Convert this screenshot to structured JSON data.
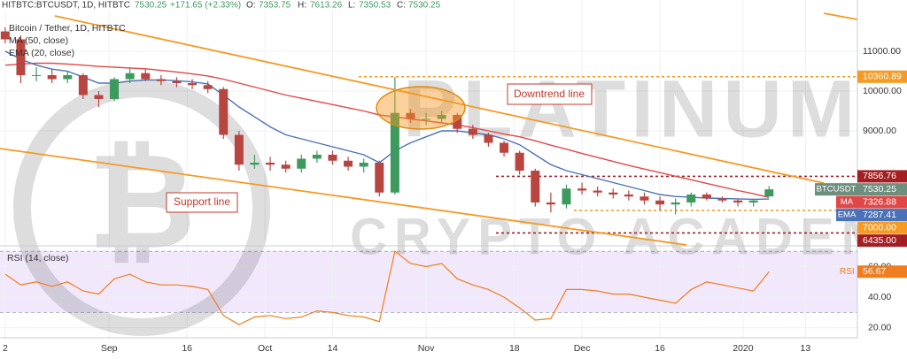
{
  "header": {
    "symbol": "HITBTC:BTCUSDT, 1D, HITBTC",
    "change": "+171.65 (+2.33%)",
    "o": "O:",
    "h": "H:",
    "l": "L:",
    "c": "C:"
  },
  "annotations": [
    "Downtrend line",
    "Support line"
  ],
  "watermark": [
    "PLATINUM",
    "CRYPTO ACADEMY"
  ],
  "chart_data": [
    {
      "type": "candlestick",
      "title": "Bitcoin / Tether, 1D, HITBTC",
      "x": [
        1,
        4,
        7,
        10,
        13,
        16,
        19,
        22,
        25,
        28,
        31,
        34,
        37,
        40,
        43,
        46,
        49,
        52,
        55,
        58,
        61,
        64,
        67,
        70,
        73,
        76,
        79,
        82,
        85,
        88,
        91,
        94,
        97,
        100,
        103,
        106,
        109,
        112,
        115,
        118,
        121,
        124,
        127,
        130,
        133,
        136,
        139,
        142,
        145,
        148
      ],
      "xlim": [
        0,
        165
      ],
      "open": [
        11500,
        11300,
        10400,
        10400,
        10300,
        10400,
        9900,
        9800,
        10300,
        10450,
        10300,
        10250,
        10200,
        10150,
        10050,
        8900,
        8150,
        8200,
        8150,
        8050,
        8300,
        8400,
        8250,
        8100,
        8200,
        7450,
        9450,
        9300,
        9300,
        9400,
        9050,
        8900,
        8700,
        8450,
        8000,
        7200,
        7150,
        7550,
        7500,
        7450,
        7400,
        7350,
        7250,
        7150,
        7200,
        7400,
        7300,
        7250,
        7200,
        7353.75
      ],
      "high": [
        11600,
        11400,
        10600,
        10550,
        10500,
        10450,
        10000,
        10350,
        10600,
        10550,
        10400,
        10350,
        10300,
        10250,
        10100,
        9000,
        8400,
        8350,
        8250,
        8400,
        8500,
        8500,
        8350,
        8300,
        8250,
        10350,
        9550,
        9450,
        9500,
        9450,
        9150,
        8950,
        8750,
        8500,
        8050,
        7450,
        7650,
        7700,
        7600,
        7550,
        7500,
        7450,
        7350,
        7300,
        7450,
        7450,
        7350,
        7300,
        7300,
        7613.26
      ],
      "low": [
        11200,
        10200,
        10250,
        10200,
        10200,
        9800,
        9600,
        9750,
        10200,
        10250,
        10150,
        10100,
        10050,
        9950,
        8800,
        8000,
        8050,
        8000,
        7950,
        7950,
        8200,
        8150,
        8000,
        7950,
        7350,
        7400,
        9200,
        9150,
        9200,
        8950,
        8800,
        8600,
        8350,
        7900,
        7100,
        6950,
        7050,
        7400,
        7350,
        7300,
        7250,
        7150,
        7000,
        6900,
        7100,
        7250,
        7200,
        7100,
        7100,
        7350.53
      ],
      "close": [
        11300,
        10400,
        10400,
        10300,
        10400,
        9900,
        9800,
        10300,
        10450,
        10300,
        10250,
        10200,
        10150,
        10050,
        8900,
        8150,
        8200,
        8150,
        8050,
        8300,
        8400,
        8250,
        8100,
        8200,
        7450,
        9450,
        9300,
        9300,
        9400,
        9050,
        8900,
        8700,
        8450,
        8000,
        7200,
        7150,
        7550,
        7500,
        7450,
        7400,
        7350,
        7250,
        7150,
        7200,
        7400,
        7300,
        7250,
        7200,
        7250,
        7530.25
      ],
      "up_color": "#3d9a5e",
      "down_color": "#b94540",
      "last_label": "BTCUSDT",
      "last_color": "#6f8f7e",
      "series": [
        {
          "name": "MA (50, close)",
          "tag": "MA",
          "color": "#e04848",
          "values": [
            10650,
            10680,
            10700,
            10700,
            10680,
            10650,
            10620,
            10600,
            10580,
            10560,
            10520,
            10480,
            10430,
            10380,
            10300,
            10200,
            10100,
            10000,
            9900,
            9820,
            9740,
            9660,
            9580,
            9500,
            9400,
            9350,
            9300,
            9250,
            9200,
            9150,
            9080,
            9000,
            8920,
            8850,
            8750,
            8640,
            8540,
            8430,
            8330,
            8230,
            8130,
            8040,
            7950,
            7860,
            7770,
            7680,
            7590,
            7500,
            7420,
            7326.88
          ]
        },
        {
          "name": "EMA (20, close)",
          "tag": "EMA",
          "color": "#4a72b8",
          "values": [
            11000,
            10800,
            10650,
            10550,
            10500,
            10350,
            10200,
            10200,
            10250,
            10280,
            10280,
            10260,
            10230,
            10180,
            9900,
            9600,
            9350,
            9100,
            8900,
            8800,
            8700,
            8600,
            8500,
            8400,
            8200,
            8500,
            8700,
            8850,
            9000,
            9000,
            8950,
            8900,
            8800,
            8650,
            8400,
            8150,
            8000,
            7900,
            7800,
            7700,
            7600,
            7500,
            7400,
            7350,
            7330,
            7310,
            7300,
            7290,
            7280,
            7287.41
          ]
        }
      ],
      "levels": [
        {
          "value": 10360.89,
          "color": "#f59a23"
        },
        {
          "value": 7856.76,
          "color": "#a31f24"
        },
        {
          "value": {
            "value": 7000,
            "label": "7000.00"
          },
          "color": "#f59a23"
        },
        {
          "value": {
            "value": 6435,
            "label": "6435.00"
          },
          "color": "#a31f24"
        }
      ],
      "ylim": [
        6133,
        12289
      ],
      "yticks": [
        {
          "value": 9000,
          "label": "9000.00"
        },
        {
          "value": 10000,
          "label": "10000.00"
        },
        {
          "value": 11000,
          "label": "11000.00"
        }
      ],
      "grid": true
    },
    {
      "type": "line",
      "title": "RSI (14, close)",
      "tag": "RSI",
      "color": "#f07d1e",
      "x": [
        1,
        4,
        7,
        10,
        13,
        16,
        19,
        22,
        25,
        28,
        31,
        34,
        37,
        40,
        43,
        46,
        49,
        52,
        55,
        58,
        61,
        64,
        67,
        70,
        73,
        76,
        79,
        82,
        85,
        88,
        91,
        94,
        97,
        100,
        103,
        106,
        109,
        112,
        115,
        118,
        121,
        124,
        127,
        130,
        133,
        136,
        139,
        142,
        145,
        148
      ],
      "values": [
        55,
        48,
        50,
        47,
        50,
        44,
        42,
        52,
        55,
        50,
        48,
        48,
        47,
        45,
        28,
        22,
        27,
        28,
        26,
        27,
        31,
        30,
        28,
        27,
        24,
        70,
        62,
        60,
        62,
        52,
        48,
        45,
        40,
        33,
        25,
        26,
        45,
        45,
        44,
        42,
        42,
        40,
        38,
        36,
        45,
        50,
        48,
        46,
        44,
        56.67
      ],
      "band": [
        30,
        70
      ],
      "band_color": "#f1e8fb",
      "xlim": [
        0,
        165
      ],
      "xticks": [
        {
          "value": 1,
          "label": "2"
        },
        {
          "value": 21,
          "label": "Sep"
        },
        {
          "value": 36,
          "label": "16"
        },
        {
          "value": 51,
          "label": "Oct"
        },
        {
          "value": 64,
          "label": "14"
        },
        {
          "value": 82,
          "label": "Nov"
        },
        {
          "value": 99,
          "label": "18"
        },
        {
          "value": 112,
          "label": "Dec"
        },
        {
          "value": 127,
          "label": "16"
        },
        {
          "value": 143,
          "label": "2020"
        },
        {
          "value": 155,
          "label": "13"
        }
      ],
      "ylim": [
        14,
        73
      ],
      "yticks": [
        {
          "value": 20,
          "label": "20.00"
        },
        {
          "value": 40,
          "label": "40.00"
        },
        {
          "value": 60,
          "label": "60.00"
        }
      ],
      "grid": true
    }
  ]
}
